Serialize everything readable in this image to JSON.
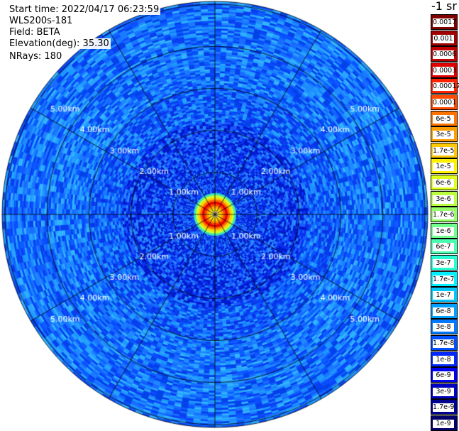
{
  "info": {
    "start_time": "Start time: 2022/04/17 06:23:59",
    "instrument": "WLS200s-181",
    "field": "Field: BETA",
    "elevation": "Elevation(deg): 35.30",
    "nrays": "NRays: 180"
  },
  "chart_data": {
    "type": "heatmap",
    "subtype": "polar PPI scan",
    "range_rings_km": [
      1,
      2,
      3,
      4,
      5
    ],
    "ring_labels": [
      "1.00km",
      "2.00km",
      "3.00km",
      "4.00km",
      "5.00km"
    ],
    "max_range_km": 5.0,
    "spokes_deg": [
      0,
      30,
      60,
      90,
      120,
      150,
      180,
      210,
      240,
      270,
      300,
      330
    ],
    "field": "BETA",
    "colorbar": {
      "unit": "-1 sr",
      "labels": [
        "0.0017",
        "0.001",
        "0.0006",
        "0.0003",
        "0.00017",
        "0.0001",
        "6e-5",
        "3e-5",
        "1.7e-5",
        "1e-5",
        "6e-6",
        "3e-6",
        "1.7e-6",
        "1e-6",
        "6e-7",
        "3e-7",
        "1.7e-7",
        "1e-7",
        "6e-8",
        "3e-8",
        "1.7e-8",
        "1e-8",
        "6e-9",
        "3e-9",
        "1.7e-9",
        "1e-9"
      ],
      "colors": [
        "#800000",
        "#a00000",
        "#c00000",
        "#e00000",
        "#ff2000",
        "#ff4a00",
        "#ff7400",
        "#ff9e00",
        "#ffc800",
        "#fff000",
        "#e0ff1a",
        "#baff40",
        "#94ff66",
        "#6eff8c",
        "#4affb0",
        "#26ffd6",
        "#00f0ff",
        "#00c8ff",
        "#00a0ff",
        "#0078ff",
        "#0050ff",
        "#0028ff",
        "#0000f0",
        "#0000c0",
        "#000090",
        "#000068"
      ]
    }
  }
}
